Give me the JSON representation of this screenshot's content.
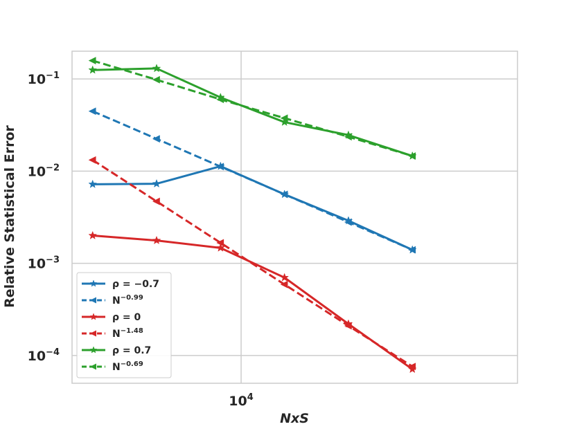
{
  "chart_data": {
    "type": "line",
    "xlabel": "NxS",
    "ylabel": "Relative Statistical Error",
    "xscale": "log",
    "yscale": "log",
    "xlim": [
      1600,
      200000
    ],
    "ylim": [
      5e-05,
      0.2
    ],
    "x_ticks": [
      {
        "value": 10000,
        "base": "10",
        "exp": "4"
      }
    ],
    "y_ticks": [
      {
        "value": 0.1,
        "base": "10",
        "exp": "−1"
      },
      {
        "value": 0.01,
        "base": "10",
        "exp": "−2"
      },
      {
        "value": 0.001,
        "base": "10",
        "exp": "−3"
      },
      {
        "value": 0.0001,
        "base": "10",
        "exp": "−4"
      }
    ],
    "grid": true,
    "legend_position": "lower left",
    "x": [
      2000,
      4000,
      8000,
      16000,
      32000,
      64000
    ],
    "series": [
      {
        "legend_base": "ρ = −0.7",
        "legend_sup": "",
        "color": "#1f77b4",
        "style": "solid",
        "marker": "star",
        "values": [
          0.0072,
          0.0073,
          0.0113,
          0.0056,
          0.0029,
          0.0014
        ]
      },
      {
        "legend_base": "N",
        "legend_sup": "−0.99",
        "color": "#1f77b4",
        "style": "dashed",
        "marker": "triangle-left",
        "values": [
          0.0447,
          0.0224,
          0.0112,
          0.0056,
          0.0028,
          0.0014
        ]
      },
      {
        "legend_base": "ρ = 0",
        "legend_sup": "",
        "color": "#d62728",
        "style": "solid",
        "marker": "star",
        "values": [
          0.002,
          0.00177,
          0.00147,
          0.0007,
          0.00022,
          7.1e-05
        ]
      },
      {
        "legend_base": "N",
        "legend_sup": "−1.48",
        "color": "#d62728",
        "style": "dashed",
        "marker": "triangle-left",
        "values": [
          0.0132,
          0.0047,
          0.00167,
          0.00059,
          0.00021,
          7.6e-05
        ]
      },
      {
        "legend_base": "ρ = 0.7",
        "legend_sup": "",
        "color": "#2ca02c",
        "style": "solid",
        "marker": "star",
        "values": [
          0.125,
          0.13,
          0.063,
          0.034,
          0.0246,
          0.0146
        ]
      },
      {
        "legend_base": "N",
        "legend_sup": "−0.69",
        "color": "#2ca02c",
        "style": "dashed",
        "marker": "triangle-left",
        "values": [
          0.158,
          0.098,
          0.06,
          0.0376,
          0.0236,
          0.0146
        ]
      }
    ]
  }
}
